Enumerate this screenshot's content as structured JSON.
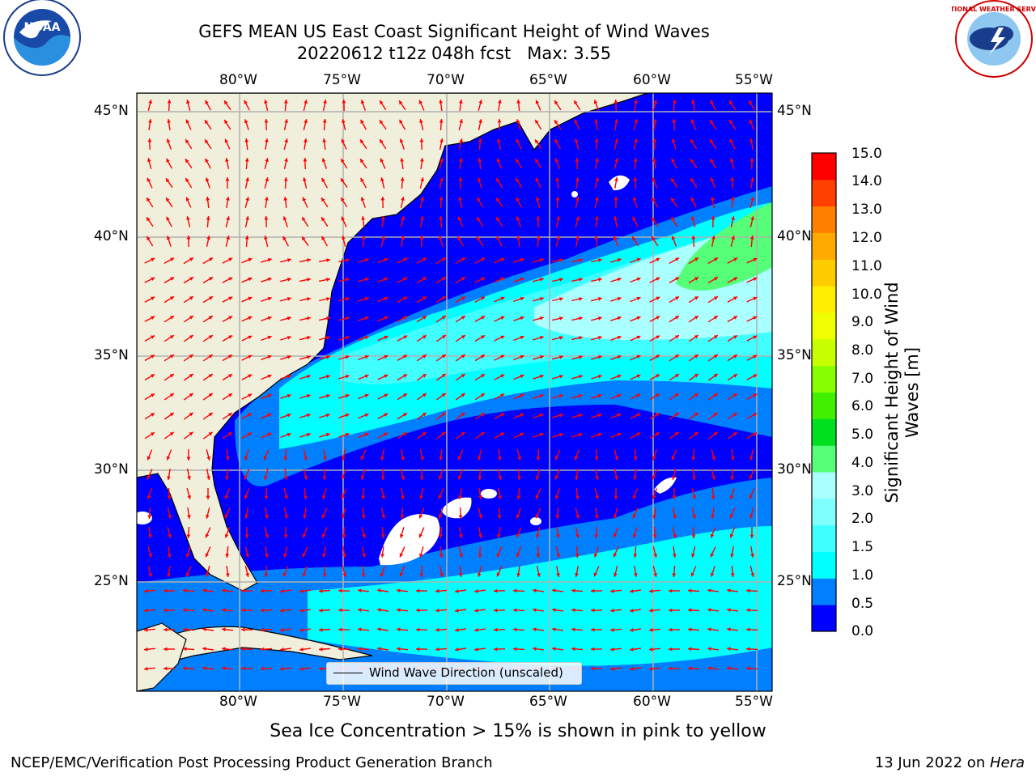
{
  "title": {
    "line1": "GEFS MEAN US East Coast Significant Height of Wind Waves",
    "line2": "20220612 t12z 048h fcst   Max: 3.55"
  },
  "map": {
    "lon_ticks": [
      "80°W",
      "75°W",
      "70°W",
      "65°W",
      "60°W",
      "55°W"
    ],
    "lat_ticks": [
      "45°N",
      "40°N",
      "35°N",
      "30°N",
      "25°N"
    ],
    "legend_label": "Wind Wave Direction (unscaled)",
    "arrow_color": "#ff0000",
    "land_color": "#efefdb",
    "ice_color": "#ffffff"
  },
  "colorbar": {
    "label": "Significant Height of Wind Waves [m]",
    "ticks": [
      "0.0",
      "0.5",
      "1.0",
      "1.5",
      "2.0",
      "3.0",
      "4.0",
      "5.0",
      "6.0",
      "7.0",
      "8.0",
      "9.0",
      "10.0",
      "11.0",
      "12.0",
      "13.0",
      "14.0",
      "15.0"
    ],
    "colors": [
      "#0000ff",
      "#0080ff",
      "#00ffff",
      "#40ffff",
      "#80ffff",
      "#aaffff",
      "#55ff77",
      "#00e020",
      "#40f000",
      "#88ff00",
      "#c8ff00",
      "#f0ff00",
      "#ffee00",
      "#ffcc00",
      "#ffaa00",
      "#ff8000",
      "#ff4000",
      "#ff0000"
    ]
  },
  "subtitle": "Sea Ice Concentration > 15% is shown in pink to yellow",
  "footer": {
    "left": "NCEP/EMC/Verification Post Processing Product Generation Branch",
    "right_date": "13 Jun 2022 on ",
    "right_host": "Hera"
  },
  "logos": {
    "noaa_text": "NOAA",
    "nws_text": "NATIONAL WEATHER SERVICE"
  }
}
